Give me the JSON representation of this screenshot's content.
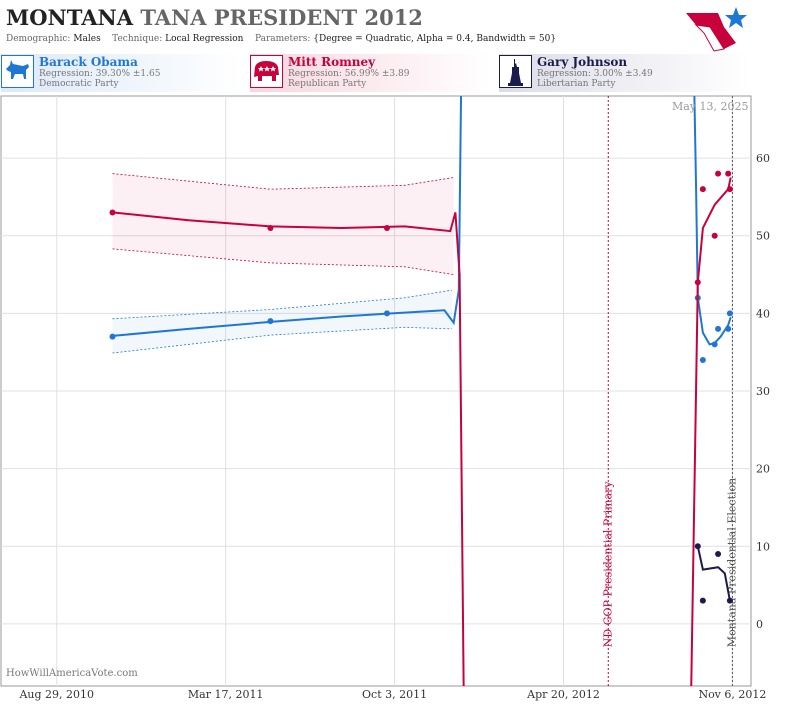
{
  "header": {
    "state": "MONTANA",
    "title": "TANA PRESIDENT 2012",
    "demographic_label": "Demographic:",
    "demographic": "Males",
    "technique_label": "Technique:",
    "technique": "Local Regression",
    "parameters_label": "Parameters:",
    "parameters": "{Degree = Quadratic, Alpha = 0.4, Bandwidth = 50}"
  },
  "candidates": [
    {
      "name": "Barack Obama",
      "regression": "Regression: 39.30% ±1.65",
      "party": "Democratic Party",
      "color": "#1f77d4",
      "icon": "donkey-icon"
    },
    {
      "name": "Mitt Romney",
      "regression": "Regression: 56.99% ±3.89",
      "party": "Republican Party",
      "color": "#c8003c",
      "icon": "elephant-icon"
    },
    {
      "name": "Gary Johnson",
      "regression": "Regression: 3.00% ±3.49",
      "party": "Libertarian Party",
      "color": "#1b1b4d",
      "icon": "statue-of-liberty-icon"
    }
  ],
  "watermark": "HowWillAmericaVote.com",
  "date_stamp": "May 13, 2025",
  "chart_data": {
    "type": "line",
    "x_tick_labels": [
      "Aug 29, 2010",
      "Mar 17, 2011",
      "Oct 3, 2011",
      "Apr 20, 2012",
      "Nov 6, 2012"
    ],
    "x_ticks": [
      "2010-08-29",
      "2011-03-17",
      "2011-10-03",
      "2012-04-20",
      "2012-11-06"
    ],
    "xlim": [
      "2010-06-24",
      "2012-11-28"
    ],
    "y_ticks": [
      0,
      10,
      20,
      30,
      40,
      50,
      60
    ],
    "ylim": [
      -8,
      68
    ],
    "grid": true,
    "events": [
      {
        "label": "ND GOP Presidential Primary",
        "date": "2012-06-12",
        "color": "#c8003c"
      },
      {
        "label": "Montana Presidential Election",
        "date": "2012-11-06",
        "color": "#555555"
      }
    ],
    "series": [
      {
        "name": "Barack Obama",
        "color": "#1f77d4",
        "points": [
          [
            "2010-11-03",
            37
          ],
          [
            "2011-05-09",
            39
          ],
          [
            "2011-09-24",
            40
          ],
          [
            "2012-09-26",
            42
          ],
          [
            "2012-10-02",
            34
          ],
          [
            "2012-10-16",
            36
          ],
          [
            "2012-10-20",
            38
          ],
          [
            "2012-11-01",
            38
          ],
          [
            "2012-11-03",
            40
          ]
        ],
        "trend": [
          [
            "2010-11-03",
            37.1
          ],
          [
            "2011-02-01",
            38.0
          ],
          [
            "2011-05-09",
            38.9
          ],
          [
            "2011-08-01",
            39.6
          ],
          [
            "2011-10-15",
            40.1
          ],
          [
            "2011-12-01",
            40.4
          ],
          [
            "2011-12-12",
            38.8
          ],
          [
            "2011-12-18",
            43.0
          ],
          [
            "2011-12-22",
            80.0
          ]
        ],
        "trend_late": [
          [
            "2012-09-20",
            80.0
          ],
          [
            "2012-09-24",
            56.0
          ],
          [
            "2012-09-26",
            42.0
          ],
          [
            "2012-10-02",
            37.5
          ],
          [
            "2012-10-10",
            36.0
          ],
          [
            "2012-10-16",
            36.2
          ],
          [
            "2012-10-23",
            37.0
          ],
          [
            "2012-11-01",
            38.5
          ],
          [
            "2012-11-04",
            39.5
          ]
        ],
        "band_upper": [
          [
            "2010-11-03",
            39.3
          ],
          [
            "2011-05-09",
            40.5
          ],
          [
            "2011-10-15",
            42.0
          ],
          [
            "2011-12-10",
            43.0
          ]
        ],
        "band_lower": [
          [
            "2010-11-03",
            34.9
          ],
          [
            "2011-05-09",
            37.2
          ],
          [
            "2011-10-15",
            38.2
          ],
          [
            "2011-12-10",
            38.0
          ]
        ]
      },
      {
        "name": "Mitt Romney",
        "color": "#c8003c",
        "points": [
          [
            "2010-11-03",
            53
          ],
          [
            "2011-05-09",
            51
          ],
          [
            "2011-09-24",
            51
          ],
          [
            "2012-09-26",
            44
          ],
          [
            "2012-10-02",
            56
          ],
          [
            "2012-10-16",
            50
          ],
          [
            "2012-10-20",
            58
          ],
          [
            "2012-11-01",
            58
          ],
          [
            "2012-11-03",
            56
          ]
        ],
        "trend": [
          [
            "2010-11-03",
            53.0
          ],
          [
            "2011-02-01",
            52.0
          ],
          [
            "2011-05-09",
            51.2
          ],
          [
            "2011-08-01",
            51.0
          ],
          [
            "2011-10-15",
            51.2
          ],
          [
            "2011-12-08",
            50.6
          ],
          [
            "2011-12-14",
            53.0
          ],
          [
            "2011-12-19",
            45.0
          ],
          [
            "2011-12-24",
            -10.0
          ]
        ],
        "trend_late": [
          [
            "2012-09-18",
            -10.0
          ],
          [
            "2012-09-26",
            44.0
          ],
          [
            "2012-10-02",
            51.0
          ],
          [
            "2012-10-16",
            54.0
          ],
          [
            "2012-11-01",
            56.0
          ],
          [
            "2012-11-04",
            57.5
          ]
        ],
        "band_upper": [
          [
            "2010-11-03",
            58.0
          ],
          [
            "2011-05-09",
            56.0
          ],
          [
            "2011-10-15",
            56.5
          ],
          [
            "2011-12-12",
            57.5
          ]
        ],
        "band_lower": [
          [
            "2010-11-03",
            48.3
          ],
          [
            "2011-05-09",
            46.5
          ],
          [
            "2011-10-15",
            46.0
          ],
          [
            "2011-12-12",
            45.0
          ]
        ]
      },
      {
        "name": "Gary Johnson",
        "color": "#1b1b4d",
        "points": [
          [
            "2012-09-26",
            10
          ],
          [
            "2012-10-02",
            3
          ],
          [
            "2012-10-20",
            9
          ],
          [
            "2012-11-03",
            3
          ]
        ],
        "trend_late": [
          [
            "2012-09-26",
            10.0
          ],
          [
            "2012-10-02",
            7.0
          ],
          [
            "2012-10-20",
            7.3
          ],
          [
            "2012-10-28",
            6.5
          ],
          [
            "2012-11-03",
            3.0
          ]
        ]
      }
    ]
  }
}
